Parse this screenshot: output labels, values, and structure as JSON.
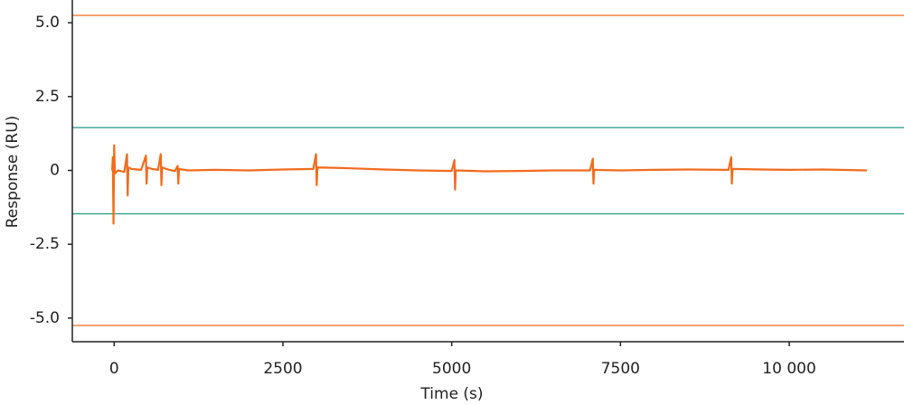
{
  "chart_data": {
    "type": "line",
    "x_label": "Time (s)",
    "y_label": "Response (RU)",
    "x": [
      -30,
      -20,
      -10,
      0,
      10,
      60,
      150,
      190,
      200,
      210,
      260,
      400,
      470,
      480,
      490,
      560,
      650,
      690,
      700,
      710,
      800,
      900,
      940,
      950,
      960,
      1100,
      1500,
      2000,
      2500,
      2950,
      2990,
      3000,
      3010,
      3400,
      4000,
      4500,
      5000,
      5040,
      5050,
      5060,
      5500,
      6000,
      6500,
      7050,
      7090,
      7100,
      7110,
      7500,
      8000,
      8500,
      9100,
      9140,
      9150,
      9160,
      9600,
      10000,
      10500,
      11150
    ],
    "values": [
      0,
      0.45,
      -1.8,
      0.85,
      -0.1,
      0,
      -0.05,
      0.55,
      -0.85,
      0.1,
      0.05,
      0.02,
      0.5,
      -0.45,
      0.1,
      0.05,
      0.02,
      0.55,
      -0.5,
      0.1,
      0.03,
      -0.02,
      0.15,
      -0.45,
      0.05,
      0,
      0.02,
      0,
      0.03,
      0.05,
      0.55,
      -0.5,
      0.1,
      0.08,
      0.03,
      0,
      -0.02,
      0.35,
      -0.65,
      0,
      -0.03,
      -0.02,
      0,
      0,
      0.4,
      -0.45,
      0.02,
      0,
      0.02,
      0.03,
      0.02,
      0.45,
      -0.45,
      0.05,
      0.03,
      0.02,
      0.03,
      0
    ],
    "color": "#f26b1d",
    "hlines": [
      {
        "value": 5.25,
        "color": "#f26b1d"
      },
      {
        "value": 1.45,
        "color": "#1e9a87"
      },
      {
        "value": -1.47,
        "color": "#1e9a87"
      },
      {
        "value": -5.25,
        "color": "#f26b1d"
      }
    ],
    "xlim": [
      -620,
      11700
    ],
    "ylim": [
      -5.8,
      5.77
    ],
    "xticks": [
      0,
      2500,
      5000,
      7500,
      {
        "value": 10000,
        "label": "10 000"
      }
    ],
    "yticks": [
      {
        "value": 5,
        "label": "5.0"
      },
      {
        "value": 2.5,
        "label": "2.5"
      },
      0,
      {
        "value": -2.5,
        "label": "-2.5"
      },
      {
        "value": -5,
        "label": "-5.0"
      }
    ]
  }
}
